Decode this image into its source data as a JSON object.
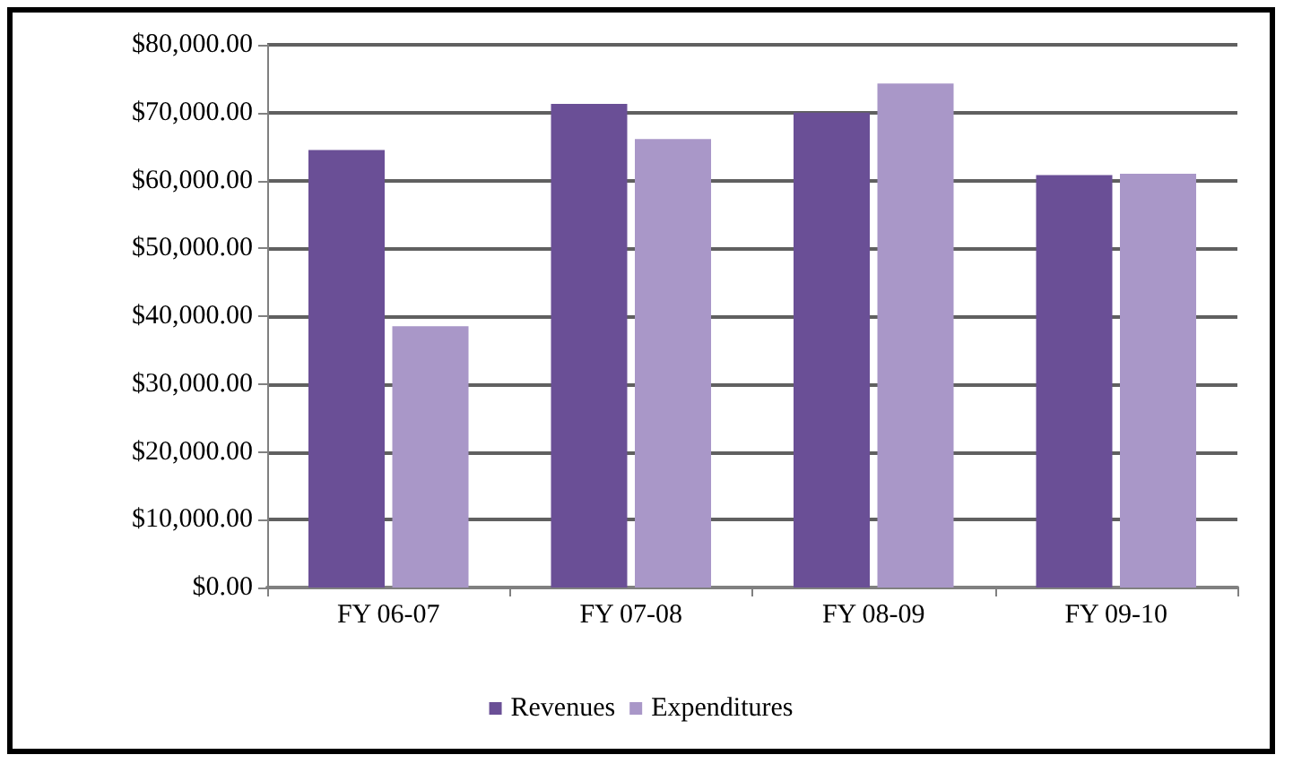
{
  "chart_data": {
    "type": "bar",
    "categories": [
      "FY 06-07",
      "FY 07-08",
      "FY 08-09",
      "FY 09-10"
    ],
    "series": [
      {
        "name": "Revenues",
        "color": "#6a4f96",
        "values": [
          64500,
          71300,
          70000,
          60800
        ]
      },
      {
        "name": "Expenditures",
        "color": "#a997c8",
        "values": [
          38500,
          66100,
          74300,
          61000
        ]
      }
    ],
    "ylim": [
      0,
      80000
    ],
    "yticks": [
      {
        "value": 0,
        "label": "$0.00"
      },
      {
        "value": 10000,
        "label": "$10,000.00"
      },
      {
        "value": 20000,
        "label": "$20,000.00"
      },
      {
        "value": 30000,
        "label": "$30,000.00"
      },
      {
        "value": 40000,
        "label": "$40,000.00"
      },
      {
        "value": 50000,
        "label": "$50,000.00"
      },
      {
        "value": 60000,
        "label": "$60,000.00"
      },
      {
        "value": 70000,
        "label": "$70,000.00"
      },
      {
        "value": 80000,
        "label": "$80,000.00"
      }
    ],
    "grid": "y",
    "legend": "bottom"
  }
}
